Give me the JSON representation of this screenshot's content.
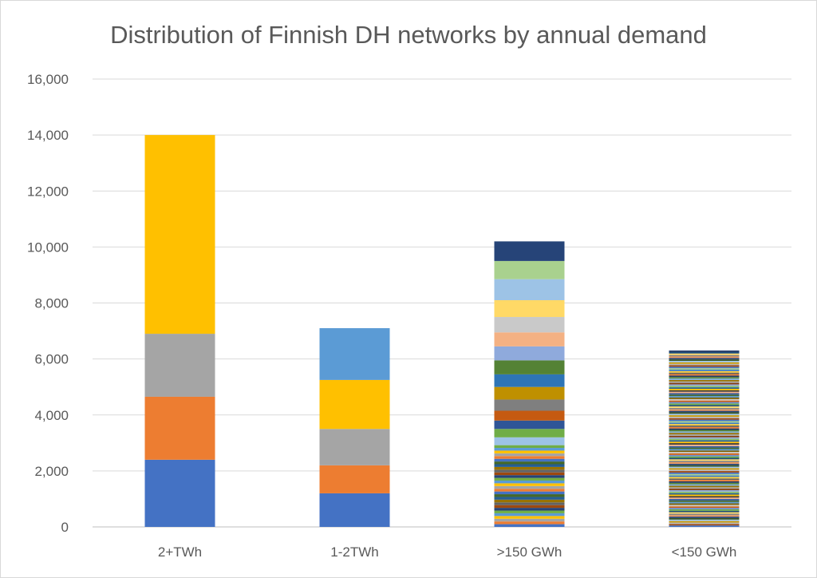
{
  "chart_data": {
    "type": "bar",
    "stacked": true,
    "title": "Distribution of Finnish DH networks by annual demand",
    "xlabel": "",
    "ylabel": "",
    "ylim": [
      0,
      16000
    ],
    "yticks": [
      0,
      2000,
      4000,
      6000,
      8000,
      10000,
      12000,
      14000,
      16000
    ],
    "ytick_labels": [
      "0",
      "2,000",
      "4,000",
      "6,000",
      "8,000",
      "10,000",
      "12,000",
      "14,000",
      "16,000"
    ],
    "grid": true,
    "legend": "none",
    "categories": [
      "2+TWh",
      "1-2TWh",
      ">150 GWh",
      "<150 GWh"
    ],
    "stacks": [
      {
        "category": "2+TWh",
        "segments": [
          2400,
          2250,
          2250,
          7100
        ],
        "colors": [
          "#4472c4",
          "#ed7d31",
          "#a5a5a5",
          "#ffc000"
        ]
      },
      {
        "category": "1-2TWh",
        "segments": [
          1200,
          1000,
          1300,
          1750,
          1850
        ],
        "colors": [
          "#4472c4",
          "#ed7d31",
          "#a5a5a5",
          "#ffc000",
          "#5b9bd5"
        ]
      },
      {
        "category": ">150 GWh",
        "total": 10200,
        "top_segments": [
          {
            "value": 700,
            "color": "#264478"
          },
          {
            "value": 650,
            "color": "#a9d18e"
          },
          {
            "value": 750,
            "color": "#9dc3e6"
          },
          {
            "value": 600,
            "color": "#ffd966"
          },
          {
            "value": 550,
            "color": "#c9c9c9"
          },
          {
            "value": 500,
            "color": "#f4b183"
          },
          {
            "value": 500,
            "color": "#8faadc"
          },
          {
            "value": 500,
            "color": "#548235"
          },
          {
            "value": 450,
            "color": "#2e75b6"
          },
          {
            "value": 450,
            "color": "#bf9000"
          },
          {
            "value": 400,
            "color": "#7f7f7f"
          },
          {
            "value": 350,
            "color": "#c55a11"
          },
          {
            "value": 300,
            "color": "#2f5597"
          },
          {
            "value": 300,
            "color": "#70ad47"
          },
          {
            "value": 280,
            "color": "#9dc3e6"
          }
        ],
        "lower_palette": [
          "#4472c4",
          "#ed7d31",
          "#a5a5a5",
          "#ffc000",
          "#5b9bd5",
          "#70ad47",
          "#264478",
          "#9e480e",
          "#636363",
          "#997300",
          "#255e91",
          "#43682b"
        ],
        "lower_count": 30
      },
      {
        "category": "<150 GWh",
        "total": 6300,
        "segment_count": 120,
        "palette": [
          "#4472c4",
          "#ed7d31",
          "#a5a5a5",
          "#ffc000",
          "#5b9bd5",
          "#70ad47",
          "#264478",
          "#9e480e",
          "#636363",
          "#997300",
          "#255e91",
          "#43682b",
          "#698ed0",
          "#f1975a",
          "#b7b7b7",
          "#ffcd33",
          "#7cafdd",
          "#8cc168",
          "#335aa1",
          "#d26012",
          "#848484",
          "#cc9a00",
          "#3c7dc4",
          "#5a8a39",
          "#8faadc",
          "#f4b183",
          "#c9c9c9",
          "#ffd966",
          "#9dc3e6",
          "#a9d18e",
          "#1f3864",
          "#843c0c",
          "#3a3838",
          "#7f6000",
          "#1f4e79",
          "#385723"
        ]
      }
    ]
  }
}
